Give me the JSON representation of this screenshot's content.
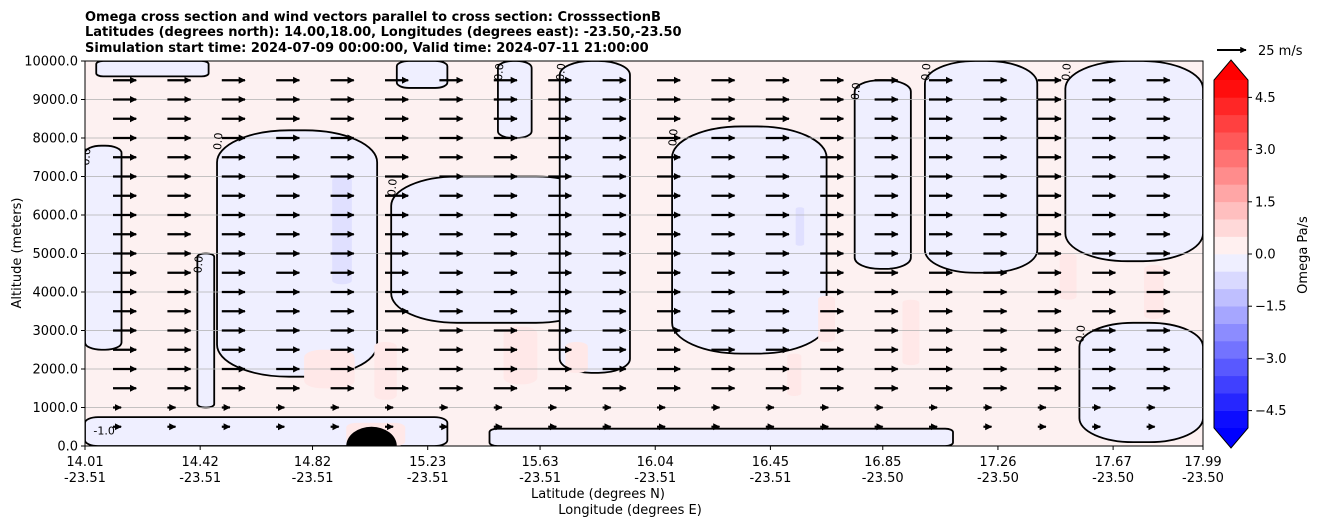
{
  "chart_data": {
    "type": "heatmap",
    "title_lines": [
      "Omega cross section and wind vectors parallel to cross section: CrosssectionB",
      "Latitudes (degrees north): 14.00,18.00, Longitudes (degrees east): -23.50,-23.50",
      "Simulation start time: 2024-07-09 00:00:00, Valid time: 2024-07-11 21:00:00"
    ],
    "ylabel": "Altitude (meters)",
    "xlabel_lines": [
      "Latitude (degrees N)",
      "Longitude (degrees E)"
    ],
    "ylim": [
      0,
      10000
    ],
    "yticks": [
      {
        "value": 0,
        "label": "0.0"
      },
      {
        "value": 1000,
        "label": "1000.0"
      },
      {
        "value": 2000,
        "label": "2000.0"
      },
      {
        "value": 3000,
        "label": "3000.0"
      },
      {
        "value": 4000,
        "label": "4000.0"
      },
      {
        "value": 5000,
        "label": "5000.0"
      },
      {
        "value": 6000,
        "label": "6000.0"
      },
      {
        "value": 7000,
        "label": "7000.0"
      },
      {
        "value": 8000,
        "label": "8000.0"
      },
      {
        "value": 9000,
        "label": "9000.0"
      },
      {
        "value": 10000,
        "label": "10000.0"
      }
    ],
    "xlim": [
      14.01,
      17.99
    ],
    "xticks": [
      {
        "lat": 14.01,
        "lat_label": "14.01",
        "lon_label": "-23.51"
      },
      {
        "lat": 14.42,
        "lat_label": "14.42",
        "lon_label": "-23.51"
      },
      {
        "lat": 14.82,
        "lat_label": "14.82",
        "lon_label": "-23.51"
      },
      {
        "lat": 15.23,
        "lat_label": "15.23",
        "lon_label": "-23.51"
      },
      {
        "lat": 15.63,
        "lat_label": "15.63",
        "lon_label": "-23.51"
      },
      {
        "lat": 16.04,
        "lat_label": "16.04",
        "lon_label": "-23.51"
      },
      {
        "lat": 16.45,
        "lat_label": "16.45",
        "lon_label": "-23.51"
      },
      {
        "lat": 16.85,
        "lat_label": "16.85",
        "lon_label": "-23.50"
      },
      {
        "lat": 17.26,
        "lat_label": "17.26",
        "lon_label": "-23.50"
      },
      {
        "lat": 17.67,
        "lat_label": "17.67",
        "lon_label": "-23.50"
      },
      {
        "lat": 17.99,
        "lat_label": "17.99",
        "lon_label": "-23.50"
      }
    ],
    "grid": "horizontal",
    "colorbar": {
      "label": "Omega Pa/s",
      "range": [
        -5.0,
        5.0
      ],
      "levels": 20,
      "extend": "both",
      "ticks": [
        {
          "value": 4.5,
          "label": "4.5"
        },
        {
          "value": 3.0,
          "label": "3.0"
        },
        {
          "value": 1.5,
          "label": "1.5"
        },
        {
          "value": 0.0,
          "label": "0.0"
        },
        {
          "value": -1.5,
          "label": "−1.5"
        },
        {
          "value": -3.0,
          "label": "−3.0"
        },
        {
          "value": -4.5,
          "label": "−4.5"
        }
      ],
      "low_color": "#0000ff",
      "high_color": "#ff0000"
    },
    "quiver_key": {
      "label": "25 m/s",
      "speed_ms": 25
    },
    "wind_vectors": {
      "direction": "northward",
      "typical_speed_ms": 20
    },
    "zero_contour_label": "0.0",
    "other_labels": [
      "-1.0"
    ],
    "regions": [
      {
        "lat_range": [
          14.01,
          14.14
        ],
        "alt_range": [
          2500,
          7800
        ],
        "omega": -0.15
      },
      {
        "lat_range": [
          14.41,
          14.47
        ],
        "alt_range": [
          1000,
          5000
        ],
        "omega": -0.15
      },
      {
        "lat_range": [
          14.48,
          15.05
        ],
        "alt_range": [
          1800,
          8200
        ],
        "omega": -0.15
      },
      {
        "lat_range": [
          14.89,
          14.96
        ],
        "alt_range": [
          4200,
          7000
        ],
        "omega": -0.6
      },
      {
        "lat_range": [
          15.1,
          15.85
        ],
        "alt_range": [
          3200,
          7000
        ],
        "omega": -0.15
      },
      {
        "lat_range": [
          15.7,
          15.95
        ],
        "alt_range": [
          1900,
          10000
        ],
        "omega": -0.15
      },
      {
        "lat_range": [
          15.48,
          15.6
        ],
        "alt_range": [
          8000,
          10000
        ],
        "omega": -0.15
      },
      {
        "lat_range": [
          16.1,
          16.65
        ],
        "alt_range": [
          2400,
          8300
        ],
        "omega": -0.15
      },
      {
        "lat_range": [
          16.54,
          16.57
        ],
        "alt_range": [
          5200,
          6200
        ],
        "omega": -0.6
      },
      {
        "lat_range": [
          16.75,
          16.95
        ],
        "alt_range": [
          4600,
          9500
        ],
        "omega": -0.15
      },
      {
        "lat_range": [
          17.0,
          17.4
        ],
        "alt_range": [
          4500,
          10000
        ],
        "omega": -0.15
      },
      {
        "lat_range": [
          17.5,
          17.99
        ],
        "alt_range": [
          4800,
          10000
        ],
        "omega": -0.15
      },
      {
        "lat_range": [
          17.55,
          17.99
        ],
        "alt_range": [
          100,
          3200
        ],
        "omega": -0.15
      },
      {
        "lat_range": [
          14.01,
          15.3
        ],
        "alt_range": [
          0,
          750
        ],
        "omega": -0.15
      },
      {
        "lat_range": [
          15.45,
          17.1
        ],
        "alt_range": [
          0,
          450
        ],
        "omega": -0.15
      },
      {
        "lat_range": [
          14.05,
          14.45
        ],
        "alt_range": [
          9600,
          10000
        ],
        "omega": -0.15
      },
      {
        "lat_range": [
          15.12,
          15.3
        ],
        "alt_range": [
          9300,
          10000
        ],
        "omega": -0.15
      },
      {
        "lat_range": [
          14.79,
          14.97
        ],
        "alt_range": [
          1500,
          2500
        ],
        "omega": 0.45
      },
      {
        "lat_range": [
          15.04,
          15.12
        ],
        "alt_range": [
          1200,
          2700
        ],
        "omega": 0.45
      },
      {
        "lat_range": [
          15.5,
          15.62
        ],
        "alt_range": [
          1600,
          3100
        ],
        "omega": 0.45
      },
      {
        "lat_range": [
          15.72,
          15.8
        ],
        "alt_range": [
          1900,
          2700
        ],
        "omega": 0.45
      },
      {
        "lat_range": [
          16.51,
          16.56
        ],
        "alt_range": [
          1300,
          2400
        ],
        "omega": 0.45
      },
      {
        "lat_range": [
          16.62,
          16.68
        ],
        "alt_range": [
          2700,
          3900
        ],
        "omega": 0.45
      },
      {
        "lat_range": [
          16.92,
          16.98
        ],
        "alt_range": [
          2100,
          3800
        ],
        "omega": 0.45
      },
      {
        "lat_range": [
          17.48,
          17.54
        ],
        "alt_range": [
          3800,
          5000
        ],
        "omega": 0.45
      },
      {
        "lat_range": [
          17.78,
          17.85
        ],
        "alt_range": [
          3300,
          4700
        ],
        "omega": 0.45
      },
      {
        "lat_range": [
          14.94,
          15.15
        ],
        "alt_range": [
          0,
          600
        ],
        "omega": 0.45
      }
    ]
  }
}
